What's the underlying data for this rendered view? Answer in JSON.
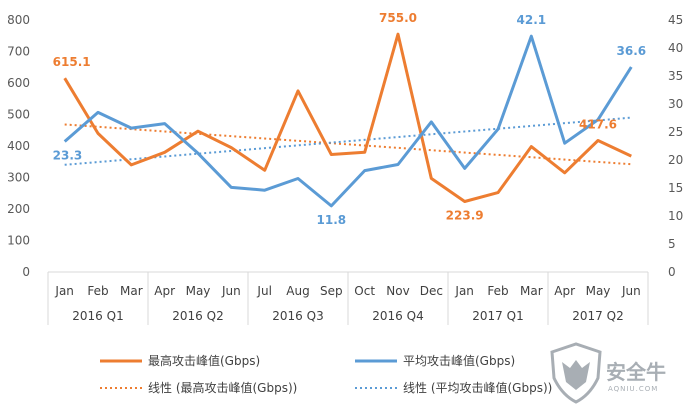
{
  "chart_data": {
    "type": "line",
    "categories": [
      "Jan",
      "Feb",
      "Mar",
      "Apr",
      "May",
      "Jun",
      "Jul",
      "Aug",
      "Sep",
      "Oct",
      "Nov",
      "Dec",
      "Jan",
      "Feb",
      "Mar",
      "Apr",
      "May",
      "Jun"
    ],
    "groups": [
      {
        "label": "2016 Q1",
        "span": 3
      },
      {
        "label": "2016 Q2",
        "span": 3
      },
      {
        "label": "2016 Q3",
        "span": 3
      },
      {
        "label": "2016 Q4",
        "span": 3
      },
      {
        "label": "2017 Q1",
        "span": 3
      },
      {
        "label": "2017 Q2",
        "span": 3
      }
    ],
    "y_left": {
      "min": 0,
      "max": 800,
      "ticks": [
        "0",
        "100",
        "200",
        "300",
        "400",
        "500",
        "600",
        "700",
        "800"
      ]
    },
    "y_right": {
      "min": 0,
      "max": 45,
      "ticks": [
        "0",
        "5",
        "10",
        "15",
        "20",
        "25",
        "30",
        "35",
        "40",
        "45"
      ]
    },
    "grid": false,
    "legend_position": "bottom",
    "series": [
      {
        "name": "最高攻击峰值(Gbps)",
        "axis": "left",
        "color": "#ed7d31",
        "values": [
          615.1,
          440,
          340,
          380,
          447,
          395,
          323,
          575,
          373,
          380,
          755.0,
          297,
          223.9,
          252,
          398,
          315,
          417.6,
          368
        ],
        "labels": [
          {
            "index": 0,
            "text": "615.1",
            "pos": "above"
          },
          {
            "index": 10,
            "text": "755.0",
            "pos": "above"
          },
          {
            "index": 12,
            "text": "223.9",
            "pos": "below"
          },
          {
            "index": 16,
            "text": "417.6",
            "pos": "above"
          }
        ]
      },
      {
        "name": "平均攻击峰值(Gbps)",
        "axis": "right",
        "color": "#5b9bd5",
        "values": [
          23.3,
          28.5,
          25.7,
          26.5,
          21.2,
          15.1,
          14.6,
          16.7,
          11.8,
          18.1,
          19.2,
          26.8,
          18.5,
          25.5,
          42.1,
          23,
          27.2,
          36.6
        ],
        "labels": [
          {
            "index": 0,
            "text": "23.3",
            "pos": "below"
          },
          {
            "index": 8,
            "text": "11.8",
            "pos": "below"
          },
          {
            "index": 14,
            "text": "42.1",
            "pos": "above"
          },
          {
            "index": 17,
            "text": "36.6",
            "pos": "above"
          }
        ]
      }
    ],
    "trendlines": [
      {
        "name": "线性 (最高攻击峰值(Gbps))",
        "series": 0,
        "color": "#ed7d31",
        "style": "dotted"
      },
      {
        "name": "线性 (平均攻击峰值(Gbps))",
        "series": 1,
        "color": "#5b9bd5",
        "style": "dotted"
      }
    ]
  },
  "watermark": {
    "text": "安全牛",
    "sub": "AQNIU.COM"
  }
}
